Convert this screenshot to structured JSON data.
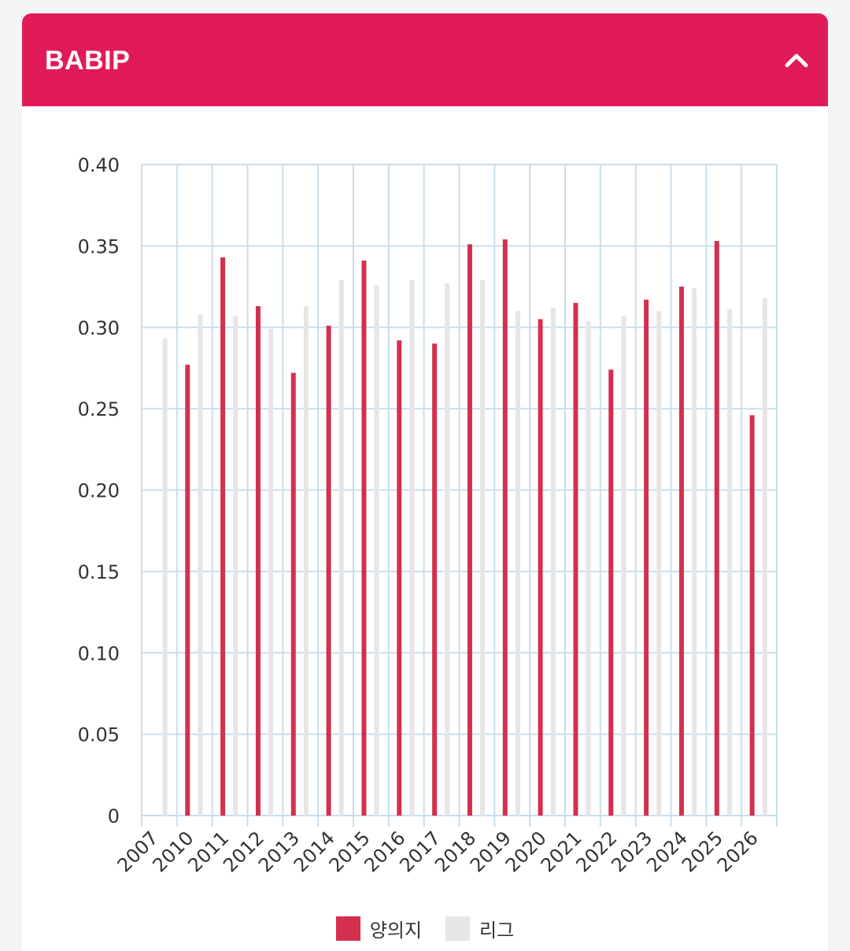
{
  "header": {
    "title": "BABIP"
  },
  "colors": {
    "header_bg": "#e11b58",
    "series_player": "#d42f4f",
    "series_league": "#e6e6e6",
    "grid": "#c9dfec"
  },
  "icons": {
    "collapse": "chevron-up-icon"
  },
  "chart_data": {
    "type": "bar",
    "title": "BABIP",
    "categories": [
      "2007",
      "2010",
      "2011",
      "2012",
      "2013",
      "2014",
      "2015",
      "2016",
      "2017",
      "2018",
      "2019",
      "2020",
      "2021",
      "2022",
      "2023",
      "2024",
      "2025",
      "2026"
    ],
    "series": [
      {
        "name": "양의지",
        "color": "#d42f4f",
        "values": [
          null,
          0.277,
          0.343,
          0.313,
          0.272,
          0.301,
          0.341,
          0.292,
          0.29,
          0.351,
          0.354,
          0.305,
          0.315,
          0.274,
          0.317,
          0.325,
          0.353,
          0.246
        ]
      },
      {
        "name": "리그",
        "color": "#e6e6e6",
        "values": [
          0.293,
          0.308,
          0.307,
          0.299,
          0.313,
          0.329,
          0.326,
          0.329,
          0.327,
          0.329,
          0.31,
          0.312,
          0.304,
          0.307,
          0.31,
          0.324,
          0.311,
          0.318
        ]
      }
    ],
    "ylim": [
      0,
      0.4
    ],
    "yticks": [
      "0",
      "0.05",
      "0.10",
      "0.15",
      "0.20",
      "0.25",
      "0.30",
      "0.35",
      "0.40"
    ],
    "ytick_values": [
      0,
      0.05,
      0.1,
      0.15,
      0.2,
      0.25,
      0.3,
      0.35,
      0.4
    ],
    "grid": true,
    "legend_position": "bottom"
  }
}
